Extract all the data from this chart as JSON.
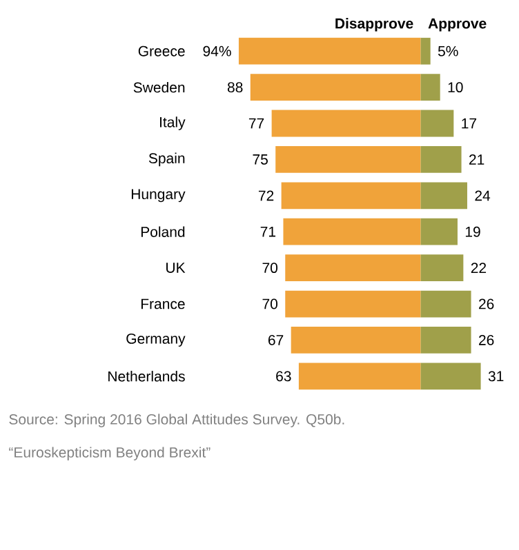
{
  "chart_data": [
    {
      "type": "bar",
      "orientation": "horizontal",
      "categories": [
        "Greece",
        "Sweden",
        "Italy",
        "Spain",
        "Hungary",
        "Poland",
        "UK",
        "France",
        "Germany",
        "Netherlands"
      ],
      "series": [
        {
          "name": "Disapprove",
          "color": "#f0a33a",
          "values": [
            94,
            88,
            77,
            75,
            72,
            71,
            70,
            70,
            67,
            63
          ],
          "value_labels": [
            "94%",
            "88",
            "77",
            "75",
            "72",
            "71",
            "70",
            "70",
            "67",
            "63"
          ]
        }
      ],
      "annotations": [
        "Source: Spring 2016 Global Attitudes Survey. Q50b.",
        "“Euroskepticism Beyond Brexit”"
      ]
    },
    {
      "type": "bar",
      "orientation": "horizontal",
      "categories": [
        null,
        null,
        null,
        null,
        null,
        null,
        null,
        null,
        null,
        null
      ],
      "series": [
        {
          "name": "Approve",
          "color": "#a0a04a",
          "values": [
            5,
            10,
            17,
            21,
            24,
            19,
            22,
            26,
            26,
            31
          ],
          "value_labels": [
            "5%",
            "10",
            "17",
            "21",
            "24",
            "19",
            "22",
            "26",
            "26",
            "31"
          ]
        }
      ]
    }
  ]
}
